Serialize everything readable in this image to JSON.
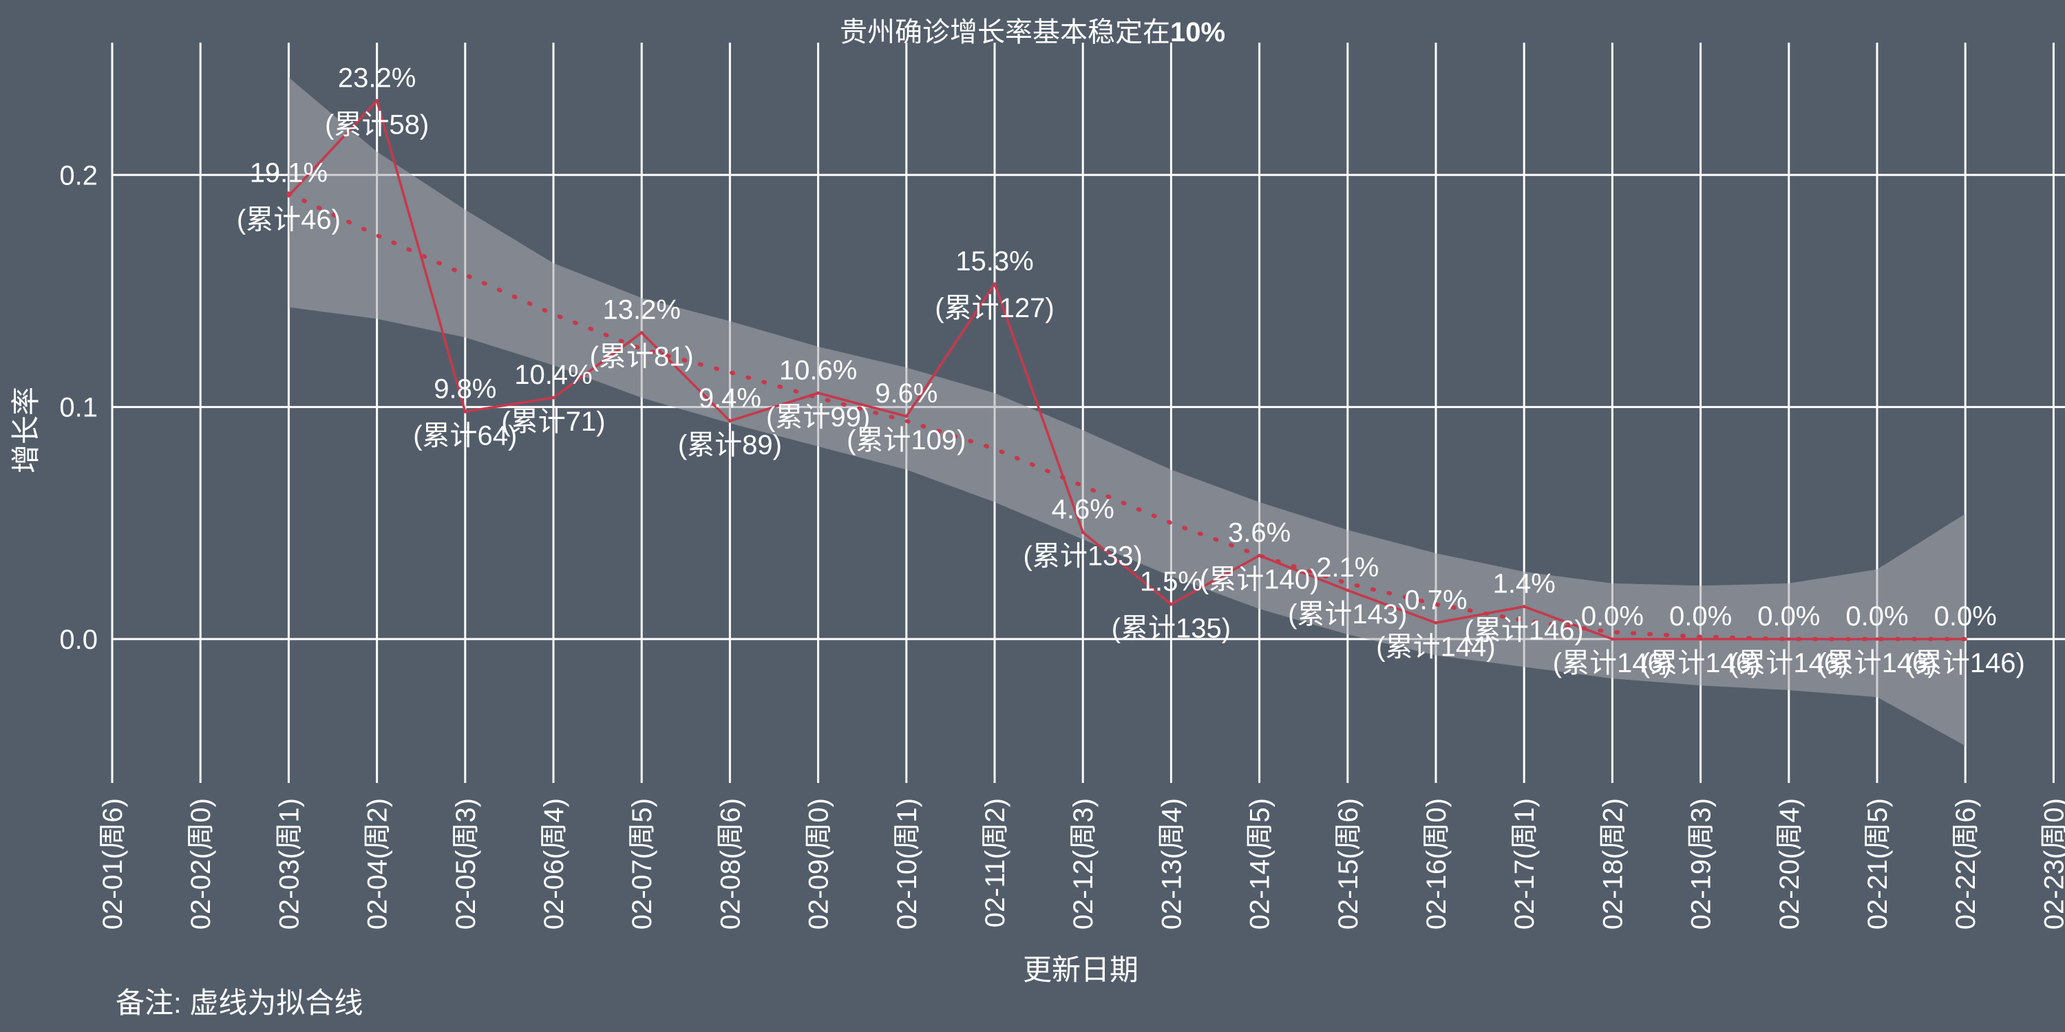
{
  "chart_data": {
    "type": "line",
    "title": "贵州确诊增长率基本稳定在",
    "title_bold": "10%",
    "xlabel": "更新日期",
    "ylabel": "增长率",
    "note": "备注: 虚线为拟合线",
    "x_ticks": [
      "02-01(周6)",
      "02-02(周0)",
      "02-03(周1)",
      "02-04(周2)",
      "02-05(周3)",
      "02-06(周4)",
      "02-07(周5)",
      "02-08(周6)",
      "02-09(周0)",
      "02-10(周1)",
      "02-11(周2)",
      "02-12(周3)",
      "02-13(周4)",
      "02-14(周5)",
      "02-15(周6)",
      "02-16(周0)",
      "02-17(周1)",
      "02-18(周2)",
      "02-19(周3)",
      "02-20(周4)",
      "02-21(周5)",
      "02-22(周6)",
      "02-23(周0)"
    ],
    "y_ticks": [
      "0.0",
      "0.1",
      "0.2"
    ],
    "ylim": [
      -0.062,
      0.257
    ],
    "grid": true,
    "series": [
      {
        "type": "line",
        "color": "#c8384a",
        "points": [
          {
            "x": "02-03(周1)",
            "y": 0.191,
            "label_pct": "19.1%",
            "label_cum": "(累计46)"
          },
          {
            "x": "02-04(周2)",
            "y": 0.232,
            "label_pct": "23.2%",
            "label_cum": "(累计58)"
          },
          {
            "x": "02-05(周3)",
            "y": 0.098,
            "label_pct": "9.8%",
            "label_cum": "(累计64)"
          },
          {
            "x": "02-06(周4)",
            "y": 0.104,
            "label_pct": "10.4%",
            "label_cum": "(累计71)"
          },
          {
            "x": "02-07(周5)",
            "y": 0.132,
            "label_pct": "13.2%",
            "label_cum": "(累计81)"
          },
          {
            "x": "02-08(周6)",
            "y": 0.094,
            "label_pct": "9.4%",
            "label_cum": "(累计89)"
          },
          {
            "x": "02-09(周0)",
            "y": 0.106,
            "label_pct": "10.6%",
            "label_cum": "(累计99)"
          },
          {
            "x": "02-10(周1)",
            "y": 0.096,
            "label_pct": "9.6%",
            "label_cum": "(累计109)"
          },
          {
            "x": "02-11(周2)",
            "y": 0.153,
            "label_pct": "15.3%",
            "label_cum": "(累计127)"
          },
          {
            "x": "02-12(周3)",
            "y": 0.046,
            "label_pct": "4.6%",
            "label_cum": "(累计133)"
          },
          {
            "x": "02-13(周4)",
            "y": 0.015,
            "label_pct": "1.5%",
            "label_cum": "(累计135)"
          },
          {
            "x": "02-14(周5)",
            "y": 0.036,
            "label_pct": "3.6%",
            "label_cum": "(累计140)"
          },
          {
            "x": "02-15(周6)",
            "y": 0.021,
            "label_pct": "2.1%",
            "label_cum": "(累计143)"
          },
          {
            "x": "02-16(周0)",
            "y": 0.007,
            "label_pct": "0.7%",
            "label_cum": "(累计144)"
          },
          {
            "x": "02-17(周1)",
            "y": 0.014,
            "label_pct": "1.4%",
            "label_cum": "(累计146)"
          },
          {
            "x": "02-18(周2)",
            "y": 0.0,
            "label_pct": "0.0%",
            "label_cum": "(累计146)"
          },
          {
            "x": "02-19(周3)",
            "y": 0.0,
            "label_pct": "0.0%",
            "label_cum": "(累计146)"
          },
          {
            "x": "02-20(周4)",
            "y": 0.0,
            "label_pct": "0.0%",
            "label_cum": "(累计146)"
          },
          {
            "x": "02-21(周5)",
            "y": 0.0,
            "label_pct": "0.0%",
            "label_cum": "(累计146)"
          },
          {
            "x": "02-22(周6)",
            "y": 0.0,
            "label_pct": "0.0%",
            "label_cum": "(累计146)"
          }
        ]
      },
      {
        "type": "fit",
        "style": "dotted",
        "color": "#c8384a",
        "band_color": "#a9aaae",
        "points": [
          {
            "x": "02-03(周1)",
            "y": 0.192,
            "lo": 0.143,
            "hi": 0.242
          },
          {
            "x": "02-04(周2)",
            "y": 0.174,
            "lo": 0.138,
            "hi": 0.21
          },
          {
            "x": "02-05(周3)",
            "y": 0.157,
            "lo": 0.13,
            "hi": 0.185
          },
          {
            "x": "02-06(周4)",
            "y": 0.14,
            "lo": 0.118,
            "hi": 0.162
          },
          {
            "x": "02-07(周5)",
            "y": 0.125,
            "lo": 0.104,
            "hi": 0.147
          },
          {
            "x": "02-08(周6)",
            "y": 0.115,
            "lo": 0.093,
            "hi": 0.137
          },
          {
            "x": "02-09(周0)",
            "y": 0.104,
            "lo": 0.083,
            "hi": 0.126
          },
          {
            "x": "02-10(周1)",
            "y": 0.094,
            "lo": 0.073,
            "hi": 0.117
          },
          {
            "x": "02-11(周2)",
            "y": 0.082,
            "lo": 0.059,
            "hi": 0.106
          },
          {
            "x": "02-12(周3)",
            "y": 0.066,
            "lo": 0.043,
            "hi": 0.09
          },
          {
            "x": "02-13(周4)",
            "y": 0.05,
            "lo": 0.027,
            "hi": 0.073
          },
          {
            "x": "02-14(周5)",
            "y": 0.036,
            "lo": 0.013,
            "hi": 0.059
          },
          {
            "x": "02-15(周6)",
            "y": 0.024,
            "lo": 0.002,
            "hi": 0.047
          },
          {
            "x": "02-16(周0)",
            "y": 0.015,
            "lo": -0.007,
            "hi": 0.037
          },
          {
            "x": "02-17(周1)",
            "y": 0.008,
            "lo": -0.012,
            "hi": 0.029
          },
          {
            "x": "02-18(周2)",
            "y": 0.003,
            "lo": -0.017,
            "hi": 0.024
          },
          {
            "x": "02-19(周3)",
            "y": 0.001,
            "lo": -0.02,
            "hi": 0.023
          },
          {
            "x": "02-20(周4)",
            "y": 0.0,
            "lo": -0.022,
            "hi": 0.024
          },
          {
            "x": "02-21(周5)",
            "y": 0.0,
            "lo": -0.025,
            "hi": 0.03
          },
          {
            "x": "02-22(周6)",
            "y": 0.0,
            "lo": -0.046,
            "hi": 0.054
          }
        ]
      }
    ]
  }
}
